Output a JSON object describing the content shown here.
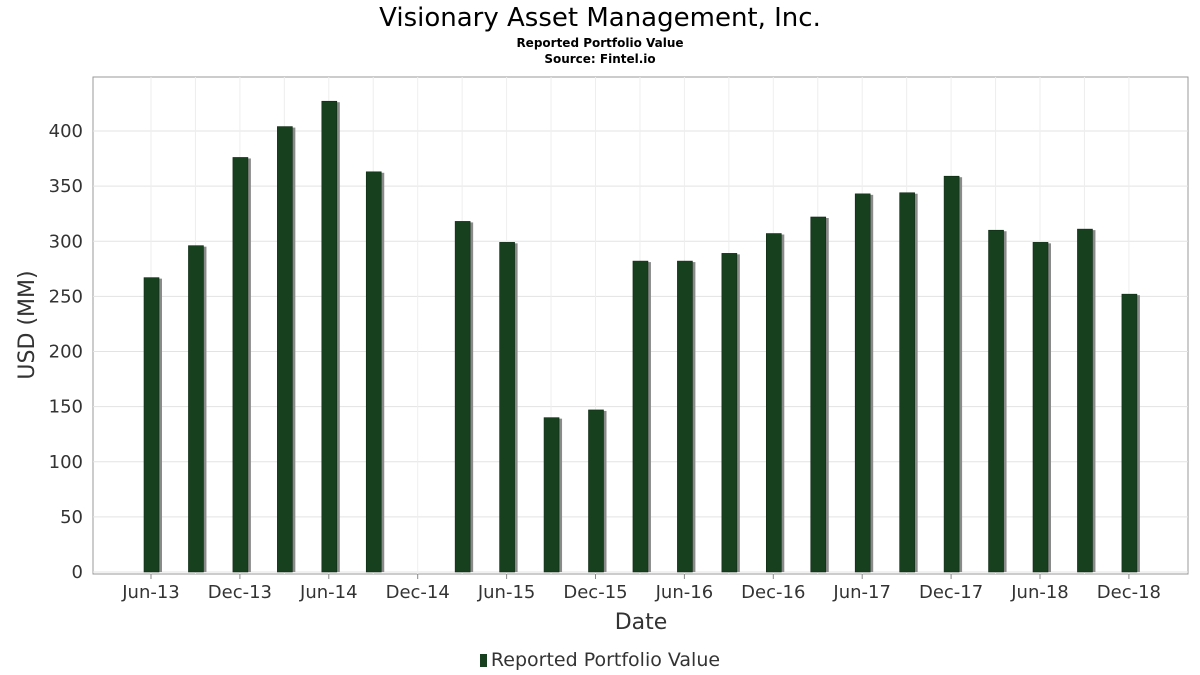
{
  "chart_data": {
    "type": "bar",
    "title": "Visionary Asset Management, Inc.",
    "subtitle": "Reported Portfolio Value",
    "source": "Source: Fintel.io",
    "xlabel": "Date",
    "ylabel": "USD (MM)",
    "ylim": [
      0,
      440
    ],
    "yticks": [
      0,
      50,
      100,
      150,
      200,
      250,
      300,
      350,
      400
    ],
    "xticks": [
      "Jun-13",
      "Dec-13",
      "Jun-14",
      "Dec-14",
      "Jun-15",
      "Dec-15",
      "Jun-16",
      "Dec-16",
      "Jun-17",
      "Dec-17",
      "Jun-18",
      "Dec-18"
    ],
    "categories": [
      "Jun-13",
      "Sep-13",
      "Dec-13",
      "Mar-14",
      "Jun-14",
      "Sep-14",
      "Dec-14",
      "Mar-15",
      "Jun-15",
      "Sep-15",
      "Dec-15",
      "Mar-16",
      "Jun-16",
      "Sep-16",
      "Dec-16",
      "Mar-17",
      "Jun-17",
      "Sep-17",
      "Dec-17",
      "Mar-18",
      "Jun-18",
      "Sep-18",
      "Dec-18"
    ],
    "series": [
      {
        "name": "Reported Portfolio Value",
        "color": "#17401f",
        "values": [
          267,
          296,
          376,
          404,
          427,
          363,
          0,
          318,
          299,
          140,
          147,
          282,
          282,
          289,
          307,
          322,
          343,
          344,
          359,
          310,
          299,
          311,
          252
        ]
      }
    ],
    "grid": true,
    "legend": "bottom"
  }
}
